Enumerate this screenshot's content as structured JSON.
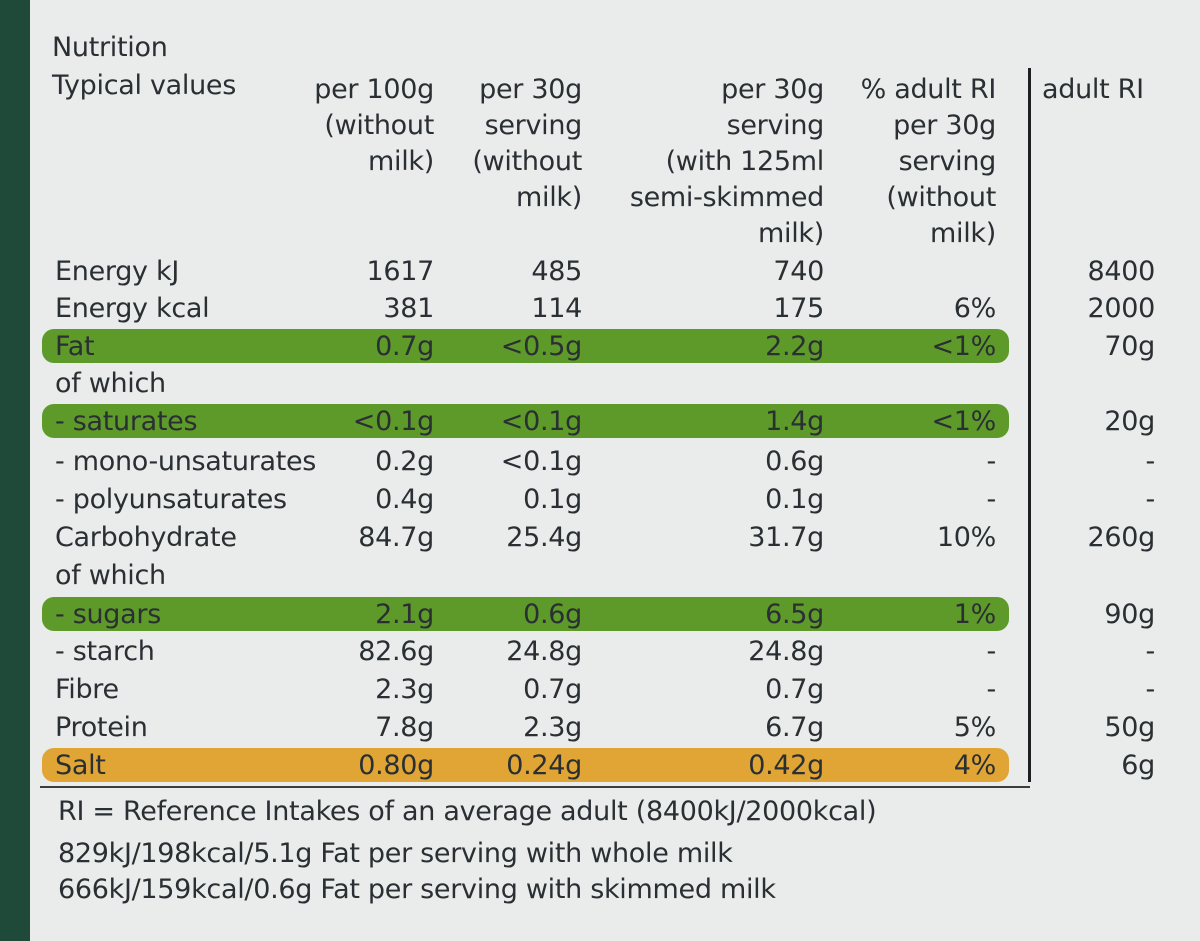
{
  "heading": "Nutrition",
  "columns": {
    "label": "Typical values",
    "c1": "per 100g\n(without\nmilk)",
    "c2": "per 30g\nserving\n(without\nmilk)",
    "c3": "per 30g\nserving\n(with 125ml\nsemi-skimmed\nmilk)",
    "c4": "% adult RI\nper 30g\nserving\n(without\nmilk)",
    "c5": "adult RI"
  },
  "rows": [
    {
      "label": "Energy kJ",
      "c1": "1617",
      "c2": "485",
      "c3": "740",
      "c4": "",
      "c5": "8400",
      "highlight": "none"
    },
    {
      "label": "Energy kcal",
      "c1": "381",
      "c2": "114",
      "c3": "175",
      "c4": "6%",
      "c5": "2000",
      "highlight": "none"
    },
    {
      "label": "Fat",
      "c1": "0.7g",
      "c2": "<0.5g",
      "c3": "2.2g",
      "c4": "<1%",
      "c5": "70g",
      "highlight": "green"
    },
    {
      "label": "of which",
      "c1": "",
      "c2": "",
      "c3": "",
      "c4": "",
      "c5": "",
      "highlight": "none"
    },
    {
      "label": "- saturates",
      "c1": "<0.1g",
      "c2": "<0.1g",
      "c3": "1.4g",
      "c4": "<1%",
      "c5": "20g",
      "highlight": "green"
    },
    {
      "label": "- mono-unsaturates",
      "c1": "0.2g",
      "c2": "<0.1g",
      "c3": "0.6g",
      "c4": "-",
      "c5": "-",
      "highlight": "none"
    },
    {
      "label": "- polyunsaturates",
      "c1": "0.4g",
      "c2": "0.1g",
      "c3": "0.1g",
      "c4": "-",
      "c5": "-",
      "highlight": "none"
    },
    {
      "label": "Carbohydrate",
      "c1": "84.7g",
      "c2": "25.4g",
      "c3": "31.7g",
      "c4": "10%",
      "c5": "260g",
      "highlight": "none"
    },
    {
      "label": "of which",
      "c1": "",
      "c2": "",
      "c3": "",
      "c4": "",
      "c5": "",
      "highlight": "none"
    },
    {
      "label": "- sugars",
      "c1": "2.1g",
      "c2": "0.6g",
      "c3": "6.5g",
      "c4": "1%",
      "c5": "90g",
      "highlight": "green"
    },
    {
      "label": "- starch",
      "c1": "82.6g",
      "c2": "24.8g",
      "c3": "24.8g",
      "c4": "-",
      "c5": "-",
      "highlight": "none"
    },
    {
      "label": "Fibre",
      "c1": "2.3g",
      "c2": "0.7g",
      "c3": "0.7g",
      "c4": "-",
      "c5": "-",
      "highlight": "none"
    },
    {
      "label": "Protein",
      "c1": "7.8g",
      "c2": "2.3g",
      "c3": "6.7g",
      "c4": "5%",
      "c5": "50g",
      "highlight": "none"
    },
    {
      "label": "Salt",
      "c1": "0.80g",
      "c2": "0.24g",
      "c3": "0.42g",
      "c4": "4%",
      "c5": "6g",
      "highlight": "orange"
    }
  ],
  "footnotes": [
    "RI = Reference Intakes of an average adult (8400kJ/2000kcal)",
    "829kJ/198kcal/5.1g Fat per serving with whole milk",
    "666kJ/159kcal/0.6g Fat per serving with skimmed milk"
  ],
  "colors": {
    "green": "#5e9a2a",
    "orange": "#e0a534",
    "background": "#e9ecea",
    "box_edge": "#1f4a3a"
  }
}
